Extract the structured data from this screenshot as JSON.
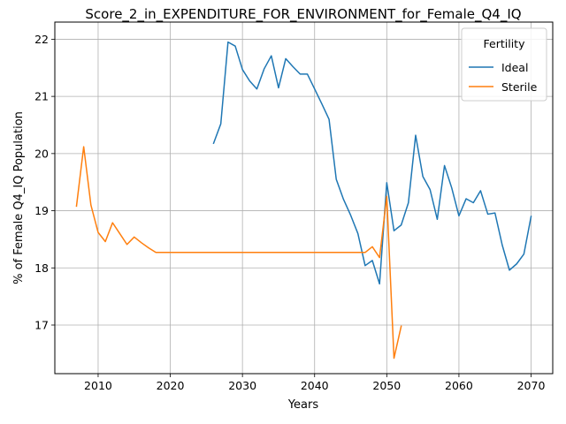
{
  "chart_data": {
    "type": "line",
    "title": "Score_2_in_EXPENDITURE_FOR_ENVIRONMENT_for_Female_Q4_IQ",
    "xlabel": "Years",
    "ylabel": "% of Female Q4_IQ Population",
    "xlim": [
      2004,
      2073
    ],
    "ylim": [
      16.15,
      22.3
    ],
    "xticks": [
      2010,
      2020,
      2030,
      2040,
      2050,
      2060,
      2070
    ],
    "yticks": [
      17,
      18,
      19,
      20,
      21,
      22
    ],
    "grid": true,
    "legend": {
      "title": "Fertility",
      "placement": "top-right"
    },
    "series": [
      {
        "name": "Ideal",
        "color": "#1f77b4",
        "x": [
          2026,
          2027,
          2028,
          2029,
          2030,
          2031,
          2032,
          2033,
          2034,
          2035,
          2036,
          2037,
          2038,
          2039,
          2040,
          2041,
          2042,
          2043,
          2044,
          2045,
          2046,
          2047,
          2048,
          2049,
          2050,
          2051,
          2052,
          2053,
          2054,
          2055,
          2056,
          2057,
          2058,
          2059,
          2060,
          2061,
          2062,
          2063,
          2064,
          2065,
          2066,
          2067,
          2068,
          2069,
          2070
        ],
        "y": [
          20.18,
          20.52,
          21.95,
          21.88,
          21.47,
          21.27,
          21.13,
          21.48,
          21.71,
          21.15,
          21.66,
          21.52,
          21.39,
          21.39,
          21.13,
          20.87,
          20.6,
          19.55,
          19.2,
          18.92,
          18.6,
          18.04,
          18.13,
          17.72,
          19.49,
          18.65,
          18.75,
          19.14,
          20.32,
          19.6,
          19.37,
          18.85,
          19.79,
          19.4,
          18.91,
          19.21,
          19.14,
          19.35,
          18.94,
          18.96,
          18.4,
          17.96,
          18.07,
          18.24,
          18.9
        ]
      },
      {
        "name": "Sterile",
        "color": "#ff7f0e",
        "x": [
          2007,
          2008,
          2009,
          2010,
          2011,
          2012,
          2013,
          2014,
          2015,
          2016,
          2017,
          2018,
          2019,
          2020,
          2021,
          2022,
          2023,
          2024,
          2025,
          2026,
          2027,
          2028,
          2029,
          2030,
          2031,
          2032,
          2033,
          2034,
          2035,
          2036,
          2037,
          2038,
          2039,
          2040,
          2041,
          2042,
          2043,
          2044,
          2045,
          2046,
          2047,
          2048,
          2049,
          2050,
          2051,
          2052
        ],
        "y": [
          19.08,
          20.12,
          19.1,
          18.62,
          18.46,
          18.79,
          18.6,
          18.41,
          18.54,
          18.44,
          18.35,
          18.27,
          18.27,
          18.27,
          18.27,
          18.27,
          18.27,
          18.27,
          18.27,
          18.27,
          18.27,
          18.27,
          18.27,
          18.27,
          18.27,
          18.27,
          18.27,
          18.27,
          18.27,
          18.27,
          18.27,
          18.27,
          18.27,
          18.27,
          18.27,
          18.27,
          18.27,
          18.27,
          18.27,
          18.27,
          18.27,
          18.37,
          18.18,
          19.25,
          16.42,
          16.98
        ]
      }
    ]
  }
}
